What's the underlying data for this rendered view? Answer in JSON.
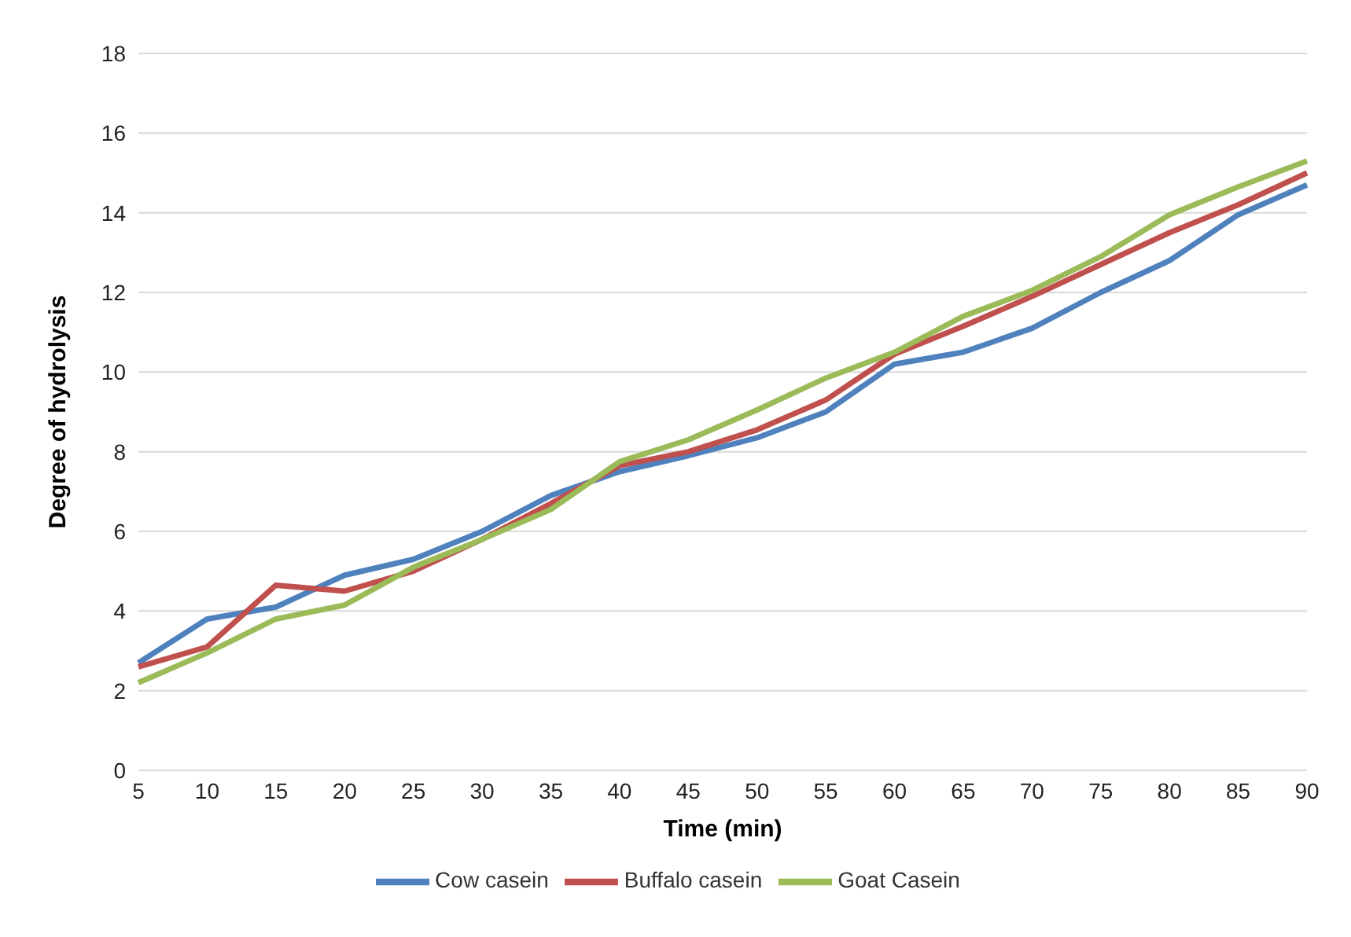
{
  "chart_data": {
    "type": "line",
    "xlabel": "Time (min)",
    "ylabel": "Degree of hydrolysis",
    "categories": [
      "5",
      "10",
      "15",
      "20",
      "25",
      "30",
      "35",
      "40",
      "45",
      "50",
      "55",
      "60",
      "65",
      "70",
      "75",
      "80",
      "85",
      "90"
    ],
    "series": [
      {
        "name": "Cow casein",
        "color": "#4f81bd",
        "values": [
          2.7,
          3.8,
          4.1,
          4.9,
          5.3,
          6.0,
          6.9,
          7.5,
          7.9,
          8.35,
          9.0,
          10.2,
          10.5,
          11.1,
          12.0,
          12.8,
          13.95,
          14.7
        ]
      },
      {
        "name": "Buffalo casein",
        "color": "#c0504d",
        "values": [
          2.6,
          3.1,
          4.65,
          4.5,
          5.0,
          5.8,
          6.7,
          7.65,
          8.0,
          8.55,
          9.3,
          10.45,
          11.15,
          11.9,
          12.7,
          13.5,
          14.2,
          15.0
        ]
      },
      {
        "name": "Goat Casein",
        "color": "#9bbb59",
        "values": [
          2.2,
          2.95,
          3.8,
          4.15,
          5.1,
          5.8,
          6.55,
          7.75,
          8.3,
          9.05,
          9.85,
          10.5,
          11.4,
          12.05,
          12.9,
          13.95,
          14.65,
          15.3
        ]
      }
    ],
    "ylim": [
      0,
      18
    ],
    "yticks": [
      0,
      2,
      4,
      6,
      8,
      10,
      12,
      14,
      16,
      18
    ],
    "grid": "y",
    "legend": "bottom",
    "marker": "none",
    "line_style": "solid"
  }
}
